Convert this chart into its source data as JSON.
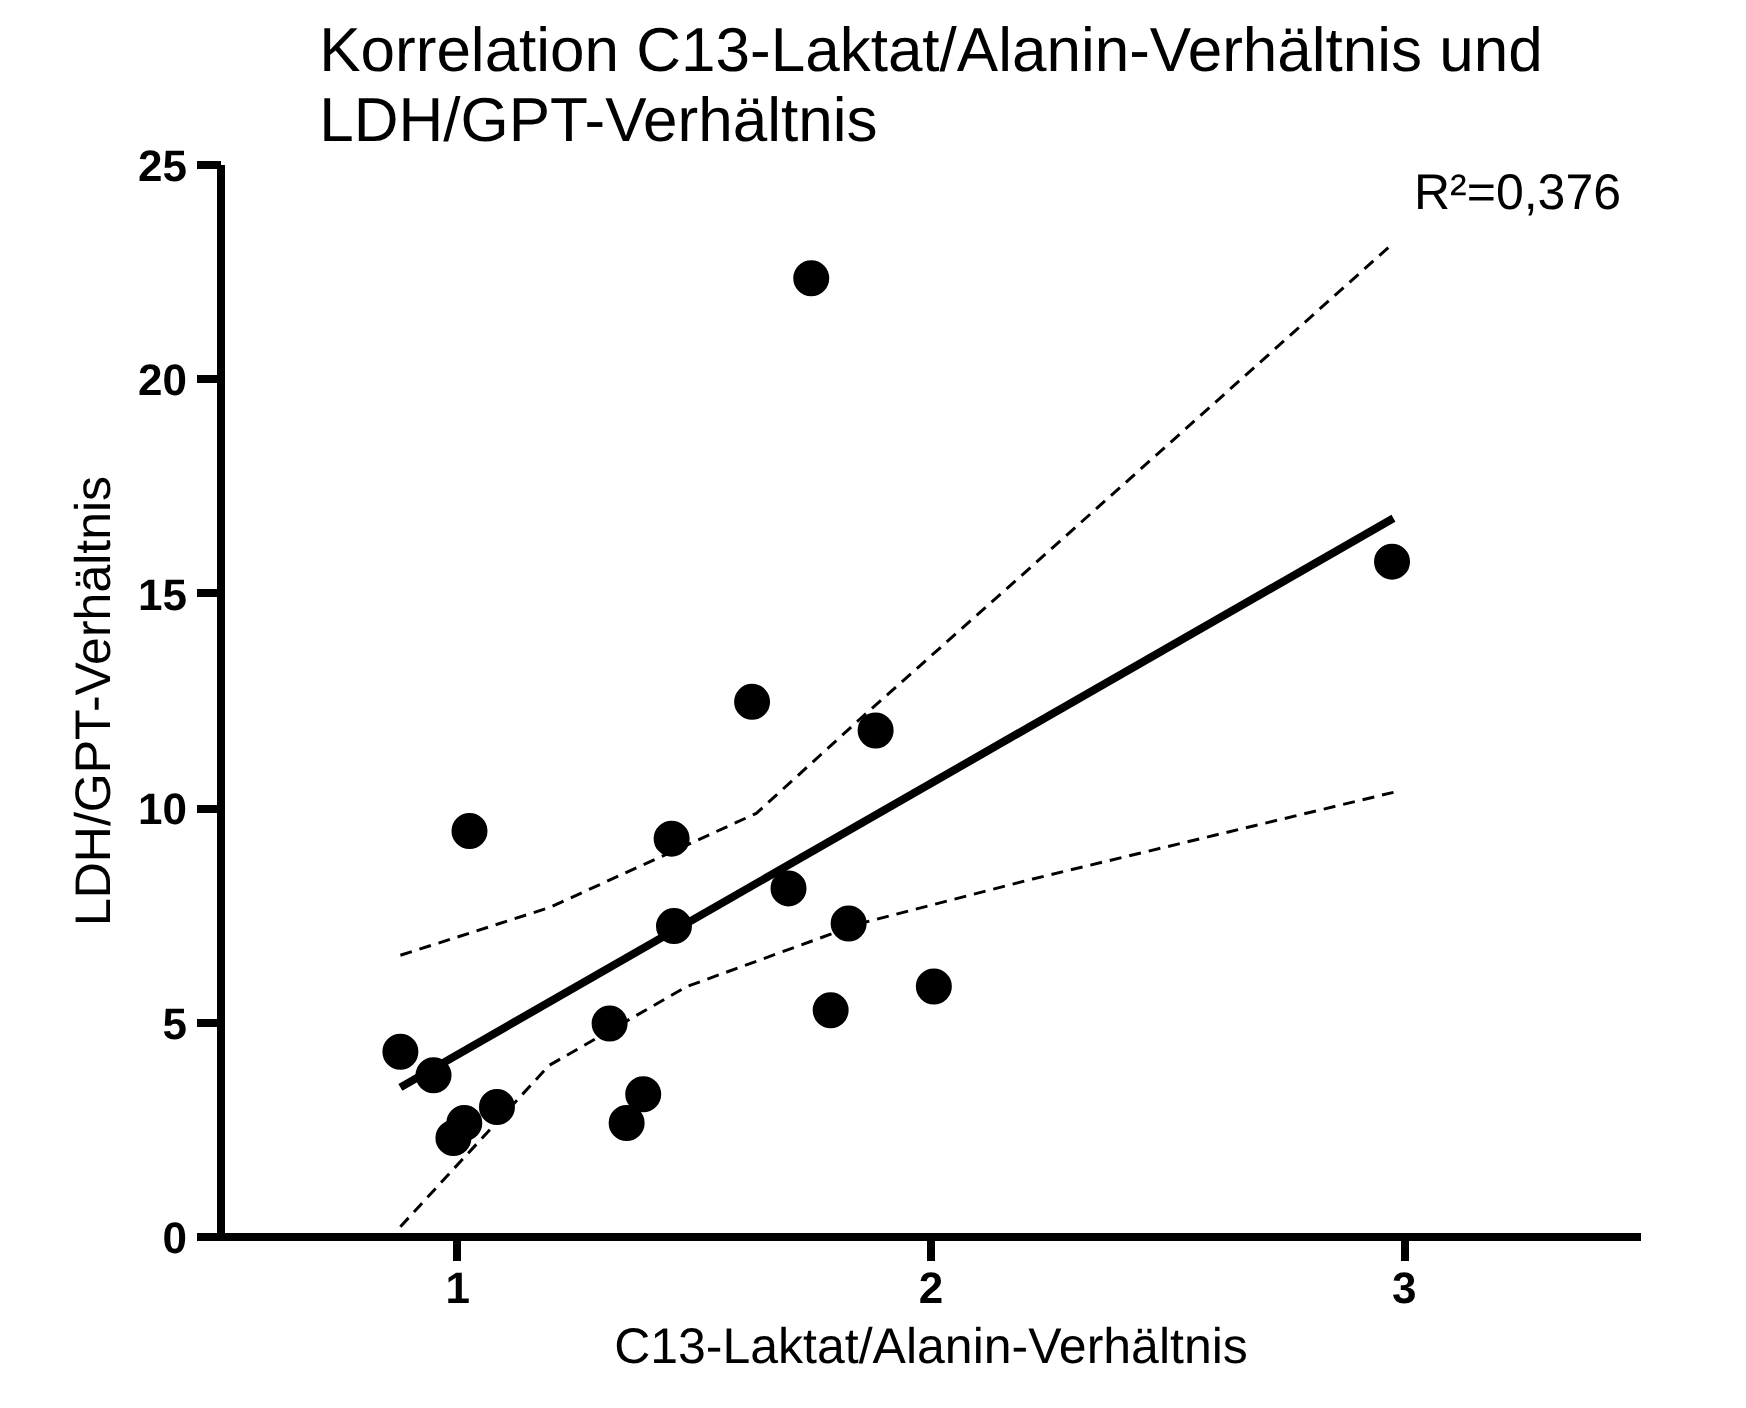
{
  "chart_data": {
    "type": "scatter",
    "title": "Korrelation C13-Laktat/Alanin-Verhältnis und\nLDH/GPT-Verhältnis",
    "xlabel": "C13-Laktat/Alanin-Verhältnis",
    "ylabel": "LDH/GPT-Verhältnis",
    "xlim": [
      0.5,
      3.5
    ],
    "xticks": [
      1,
      2,
      3
    ],
    "ylim": [
      0,
      25
    ],
    "yticks": [
      0,
      5,
      10,
      15,
      20,
      25
    ],
    "grid": false,
    "annotations": [
      "R²=0,376"
    ],
    "series": [
      {
        "color": "#000000",
        "marker": "circle",
        "x": [
          0.879,
          0.949,
          1.025,
          0.991,
          1.014,
          1.083,
          1.321,
          1.357,
          1.392,
          1.452,
          1.457,
          1.622,
          1.747,
          1.699,
          1.788,
          1.826,
          1.883,
          2.006,
          2.974
        ],
        "values": [
          4.32,
          3.77,
          9.47,
          2.31,
          2.66,
          3.03,
          4.98,
          2.66,
          3.33,
          9.29,
          7.25,
          12.48,
          22.36,
          8.13,
          5.29,
          7.31,
          11.81,
          5.84,
          15.75
        ]
      },
      {
        "type": "line",
        "color": "#000000",
        "line_style": "solid",
        "marker": "none",
        "x": [
          0.879,
          2.977
        ],
        "values": [
          3.49,
          16.76
        ]
      },
      {
        "type": "line",
        "color": "#000000",
        "line_style": "dashed",
        "marker": "none",
        "x": [
          0.879,
          1.193,
          1.631,
          1.85,
          2.215,
          2.977
        ],
        "values": [
          6.57,
          7.68,
          9.88,
          12.08,
          15.66,
          23.18
        ]
      },
      {
        "type": "line",
        "color": "#000000",
        "line_style": "dashed",
        "marker": "none",
        "x": [
          0.879,
          1.193,
          1.484,
          1.85,
          2.215,
          2.977
        ],
        "values": [
          0.24,
          4.0,
          5.84,
          7.31,
          8.35,
          10.37
        ]
      }
    ]
  }
}
